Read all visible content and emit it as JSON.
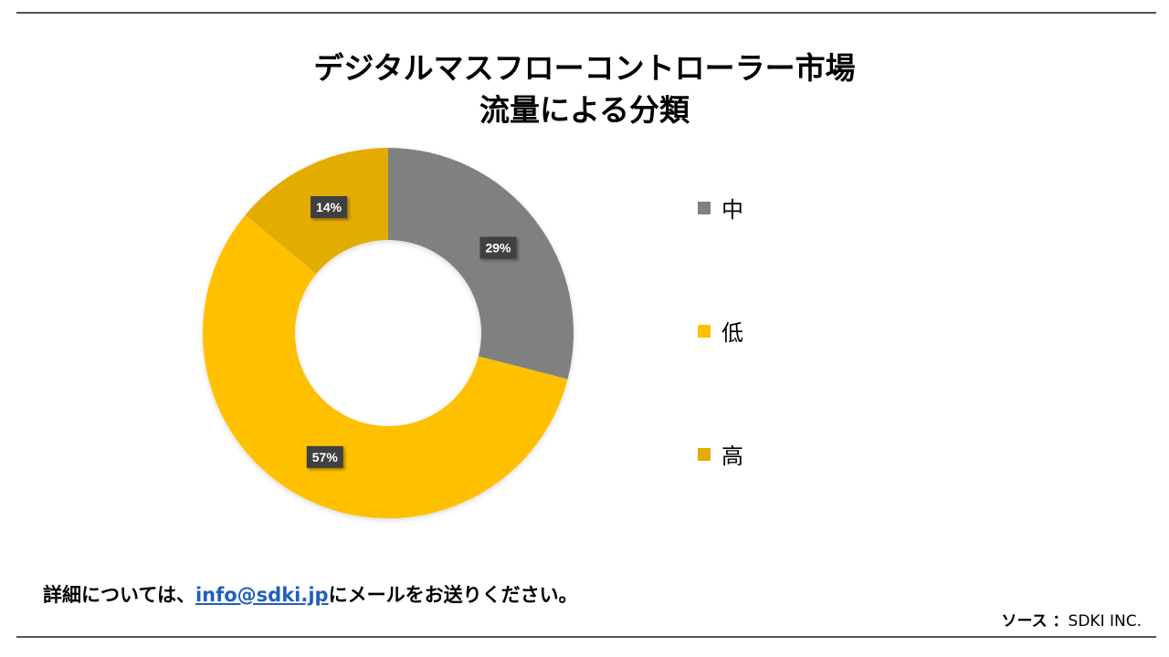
{
  "title": {
    "line1": "デジタルマスフローコントローラー市場",
    "line2": "流量による分類"
  },
  "chart_data": {
    "type": "pie",
    "donut": true,
    "start_angle_deg": 0,
    "direction": "clockwise",
    "slices": [
      {
        "label": "中",
        "value": 29,
        "display": "29%",
        "color": "#808080"
      },
      {
        "label": "低",
        "value": 57,
        "display": "57%",
        "color": "#FFC000"
      },
      {
        "label": "高",
        "value": 14,
        "display": "14%",
        "color": "#E2AC00"
      }
    ],
    "legend_position": "right"
  },
  "footer": {
    "prefix": "詳細については、",
    "email": "info@sdki.jp",
    "suffix": "にメールをお送りください。"
  },
  "source": {
    "label": "ソース ：",
    "value": "SDKI INC."
  }
}
